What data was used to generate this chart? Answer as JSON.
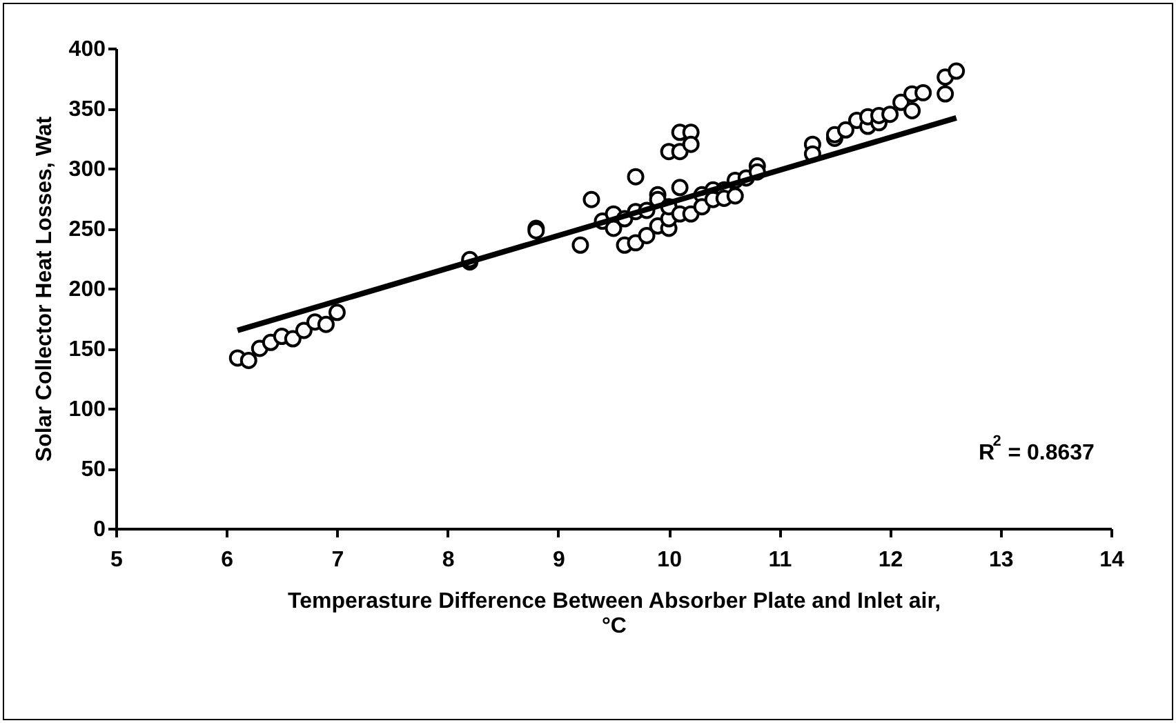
{
  "chart_data": {
    "type": "scatter",
    "xlabel": "Temperasture Difference Between Absorber Plate and Inlet air, °C",
    "ylabel": "Solar Collector Heat Losses, Wat",
    "annotations": [
      "R$^{2}$ = 0.8637"
    ],
    "xlim": [
      5,
      14
    ],
    "xticks": [
      5,
      6,
      7,
      8,
      9,
      10,
      11,
      12,
      13,
      14
    ],
    "ylim": [
      0,
      400
    ],
    "yticks": [
      0,
      50,
      100,
      150,
      200,
      250,
      300,
      350,
      400
    ],
    "grid": false,
    "series": [
      {
        "marker": "circle",
        "color": "#000000",
        "x": [
          6.1,
          6.2,
          6.3,
          6.4,
          6.5,
          6.6,
          6.7,
          6.8,
          6.9,
          7.0,
          8.2,
          8.2,
          8.8,
          8.8,
          9.2,
          9.3,
          9.4,
          9.5,
          9.5,
          9.6,
          9.6,
          9.7,
          9.7,
          9.7,
          9.8,
          9.8,
          9.9,
          9.9,
          9.9,
          10.0,
          10.0,
          10.0,
          10.0,
          10.1,
          10.1,
          10.1,
          10.1,
          10.2,
          10.2,
          10.2,
          10.3,
          10.3,
          10.4,
          10.4,
          10.5,
          10.5,
          10.6,
          10.6,
          10.7,
          10.8,
          10.8,
          11.3,
          11.3,
          11.5,
          11.5,
          11.6,
          11.7,
          11.8,
          11.8,
          11.9,
          11.9,
          12.0,
          12.1,
          12.2,
          12.2,
          12.3,
          12.5,
          12.5,
          12.6
        ],
        "values": [
          142,
          140,
          150,
          155,
          160,
          158,
          165,
          172,
          170,
          180,
          222,
          224,
          250,
          248,
          236,
          274,
          256,
          262,
          250,
          236,
          258,
          293,
          238,
          264,
          244,
          265,
          252,
          278,
          274,
          314,
          250,
          258,
          268,
          330,
          314,
          284,
          262,
          330,
          320,
          262,
          278,
          268,
          282,
          274,
          282,
          275,
          290,
          277,
          292,
          302,
          297,
          320,
          312,
          325,
          328,
          332,
          340,
          335,
          343,
          338,
          344,
          345,
          355,
          362,
          348,
          363,
          376,
          362,
          381
        ]
      },
      {
        "type": "line",
        "color": "#000000",
        "x": [
          6.1,
          12.6
        ],
        "values": [
          165,
          342
        ]
      }
    ]
  }
}
